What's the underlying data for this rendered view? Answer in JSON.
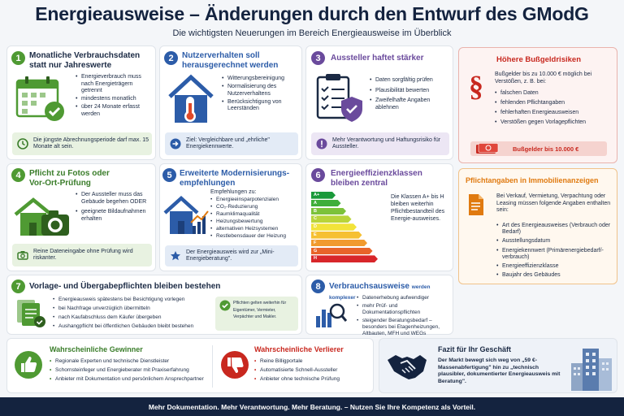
{
  "header": {
    "title": "Energieausweise – Änderungen durch den Entwurf des GModG",
    "subtitle": "Die wichtigsten Neuerungen im Bereich Energieausweise im Überblick"
  },
  "sections": [
    {
      "number": "1",
      "title": "Monatliche Verbrauchsdaten statt nur Jahreswerte",
      "bullets": [
        "Energieverbrauch muss nach Energieträgern getrennt",
        "mindestens monatlich",
        "über 24 Monate erfasst werden"
      ],
      "note": "Die jüngste Abrechnungsperiode darf max. 15 Monate alt sein."
    },
    {
      "number": "2",
      "title": "Nutzerverhalten soll herausgerechnet werden",
      "bullets": [
        "Witterungsbereinigung",
        "Normalisierung des Nutzerverhaltens",
        "Berücksichtigung von Leerständen"
      ],
      "note": "Ziel: Vergleichbare und „ehrliche\" Energiekennwerte."
    },
    {
      "number": "3",
      "title": "Aussteller haftet stärker",
      "bullets": [
        "Daten sorgfältig prüfen",
        "Plausibilität bewerten",
        "Zweifelhafte Angaben ablehnen"
      ],
      "note": "Mehr Verantwortung und Haftungsrisiko für Aussteller."
    },
    {
      "number": "4",
      "title": "Pflicht zu Fotos oder Vor-Ort-Prüfung",
      "bullets": [
        "Der Aussteller muss das Gebäude begehen ODER",
        "geeignete Bildaufnahmen erhalten"
      ],
      "note": "Reine Dateneingabe ohne Prüfung wird riskanter."
    },
    {
      "number": "5",
      "title": "Erweiterte Modernisierungs-empfehlungen",
      "intro": "Empfehlungen zu:",
      "bullets": [
        "Energieeinsparpotenzialen",
        "CO₂-Reduzierung",
        "Raumklimaqualität",
        "Heizungsbewertung",
        "alternativen Heizsystemen",
        "Restlebensdauer der Heizung"
      ],
      "note": "Der Energieausweis wird zur „Mini-Energieberatung\"."
    },
    {
      "number": "6",
      "title": "Energieeffizienzklassen bleiben zentral",
      "classes": [
        "A+",
        "A",
        "B",
        "C",
        "D",
        "E",
        "F",
        "G",
        "H"
      ],
      "text": "Die Klassen A+ bis H bleiben weiterhin Pflichtbestandteil des Energie-ausweises."
    },
    {
      "number": "7",
      "title": "Vorlage- und Übergabepflichten bleiben bestehen",
      "bullets": [
        "Energieausweis spätestens bei Besichtigung vorlegen",
        "bei Nachfrage unverzüglich übermitteln",
        "nach Kaufabschluss dem Käufer übergeben",
        "Aushangpflicht bei öffentlichen Gebäuden bleibt bestehen"
      ],
      "note": "Pflichten gelten weiterhin für Eigentümer, Vermieter, Verpächter und Makler."
    },
    {
      "number": "8",
      "title": "Verbrauchsausweise",
      "title_suffix": "werden komplexer",
      "bullets": [
        "Datenerhebung aufwendiger",
        "mehr Prüf- und Dokumentationspflichten",
        "steigender Beratungsbedarf – besonders bei Etagenheizungen, Altbauten, MFH und WEGs"
      ]
    }
  ],
  "fines": {
    "title": "Höhere Bußgeldrisiken",
    "intro": "Bußgelder bis zu 10.000 € möglich bei Verstößen, z. B. bei:",
    "items": [
      "falschen Daten",
      "fehlenden Pflichtangaben",
      "fehlerhaften Energieausweisen",
      "Verstößen gegen Vorlagepflichten"
    ],
    "badge": "Bußgelder bis 10.000 €"
  },
  "ads": {
    "title": "Pflichtangaben in Immobilienanzeigen",
    "intro": "Bei Verkauf, Vermietung, Verpachtung oder Leasing müssen folgende Angaben enthalten sein:",
    "items": [
      "Art des Energieausweises (Verbrauch oder Bedarf)",
      "Ausstellungsdatum",
      "Energiekennwert (Primärenergiebedarf/-verbrauch)",
      "Energieeffizienzklasse",
      "Baujahr des Gebäudes"
    ]
  },
  "winners": {
    "title": "Wahrscheinliche Gewinner",
    "items": [
      "Regionale Experten und technische Dienstleister",
      "Schornsteinfeger und Energieberater mit Praxiserfahrung",
      "Anbieter mit Dokumentation und persönlichem Ansprechpartner"
    ]
  },
  "losers": {
    "title": "Wahrscheinliche Verlierer",
    "items": [
      "Reine Billigportale",
      "Automatisierte Schnell-Aussteller",
      "Anbieter ohne technische Prüfung"
    ]
  },
  "conclusion": {
    "title": "Fazit für Ihr Geschäft",
    "text": "Der Markt bewegt sich weg von „59 €-Massenabfertigung\" hin zu „technisch plausibler, dokumentierter Energieausweis mit Beratung\"."
  },
  "footer": "Mehr Dokumentation. Mehr Verantwortung. Mehr Beratung. – Nutzen Sie Ihre Kompetenz als Vorteil.",
  "colors": {
    "green": "#4f9a33",
    "blue": "#2c5ca8",
    "purple": "#6a4a9c",
    "red": "#c8281f",
    "orange": "#e07a10",
    "navy": "#14233f"
  },
  "icons": [
    "calendar-check-icon",
    "house-thermometer-icon",
    "clipboard-shield-icon",
    "paragraph-icon",
    "money-icon",
    "document-icon",
    "house-camera-icon",
    "house-chart-icon",
    "star-icon",
    "energy-scale-icon",
    "folder-documents-icon",
    "check-circle-icon",
    "chart-magnifier-icon",
    "thumbs-up-icon",
    "thumbs-down-icon",
    "handshake-icon",
    "buildings-icon"
  ]
}
